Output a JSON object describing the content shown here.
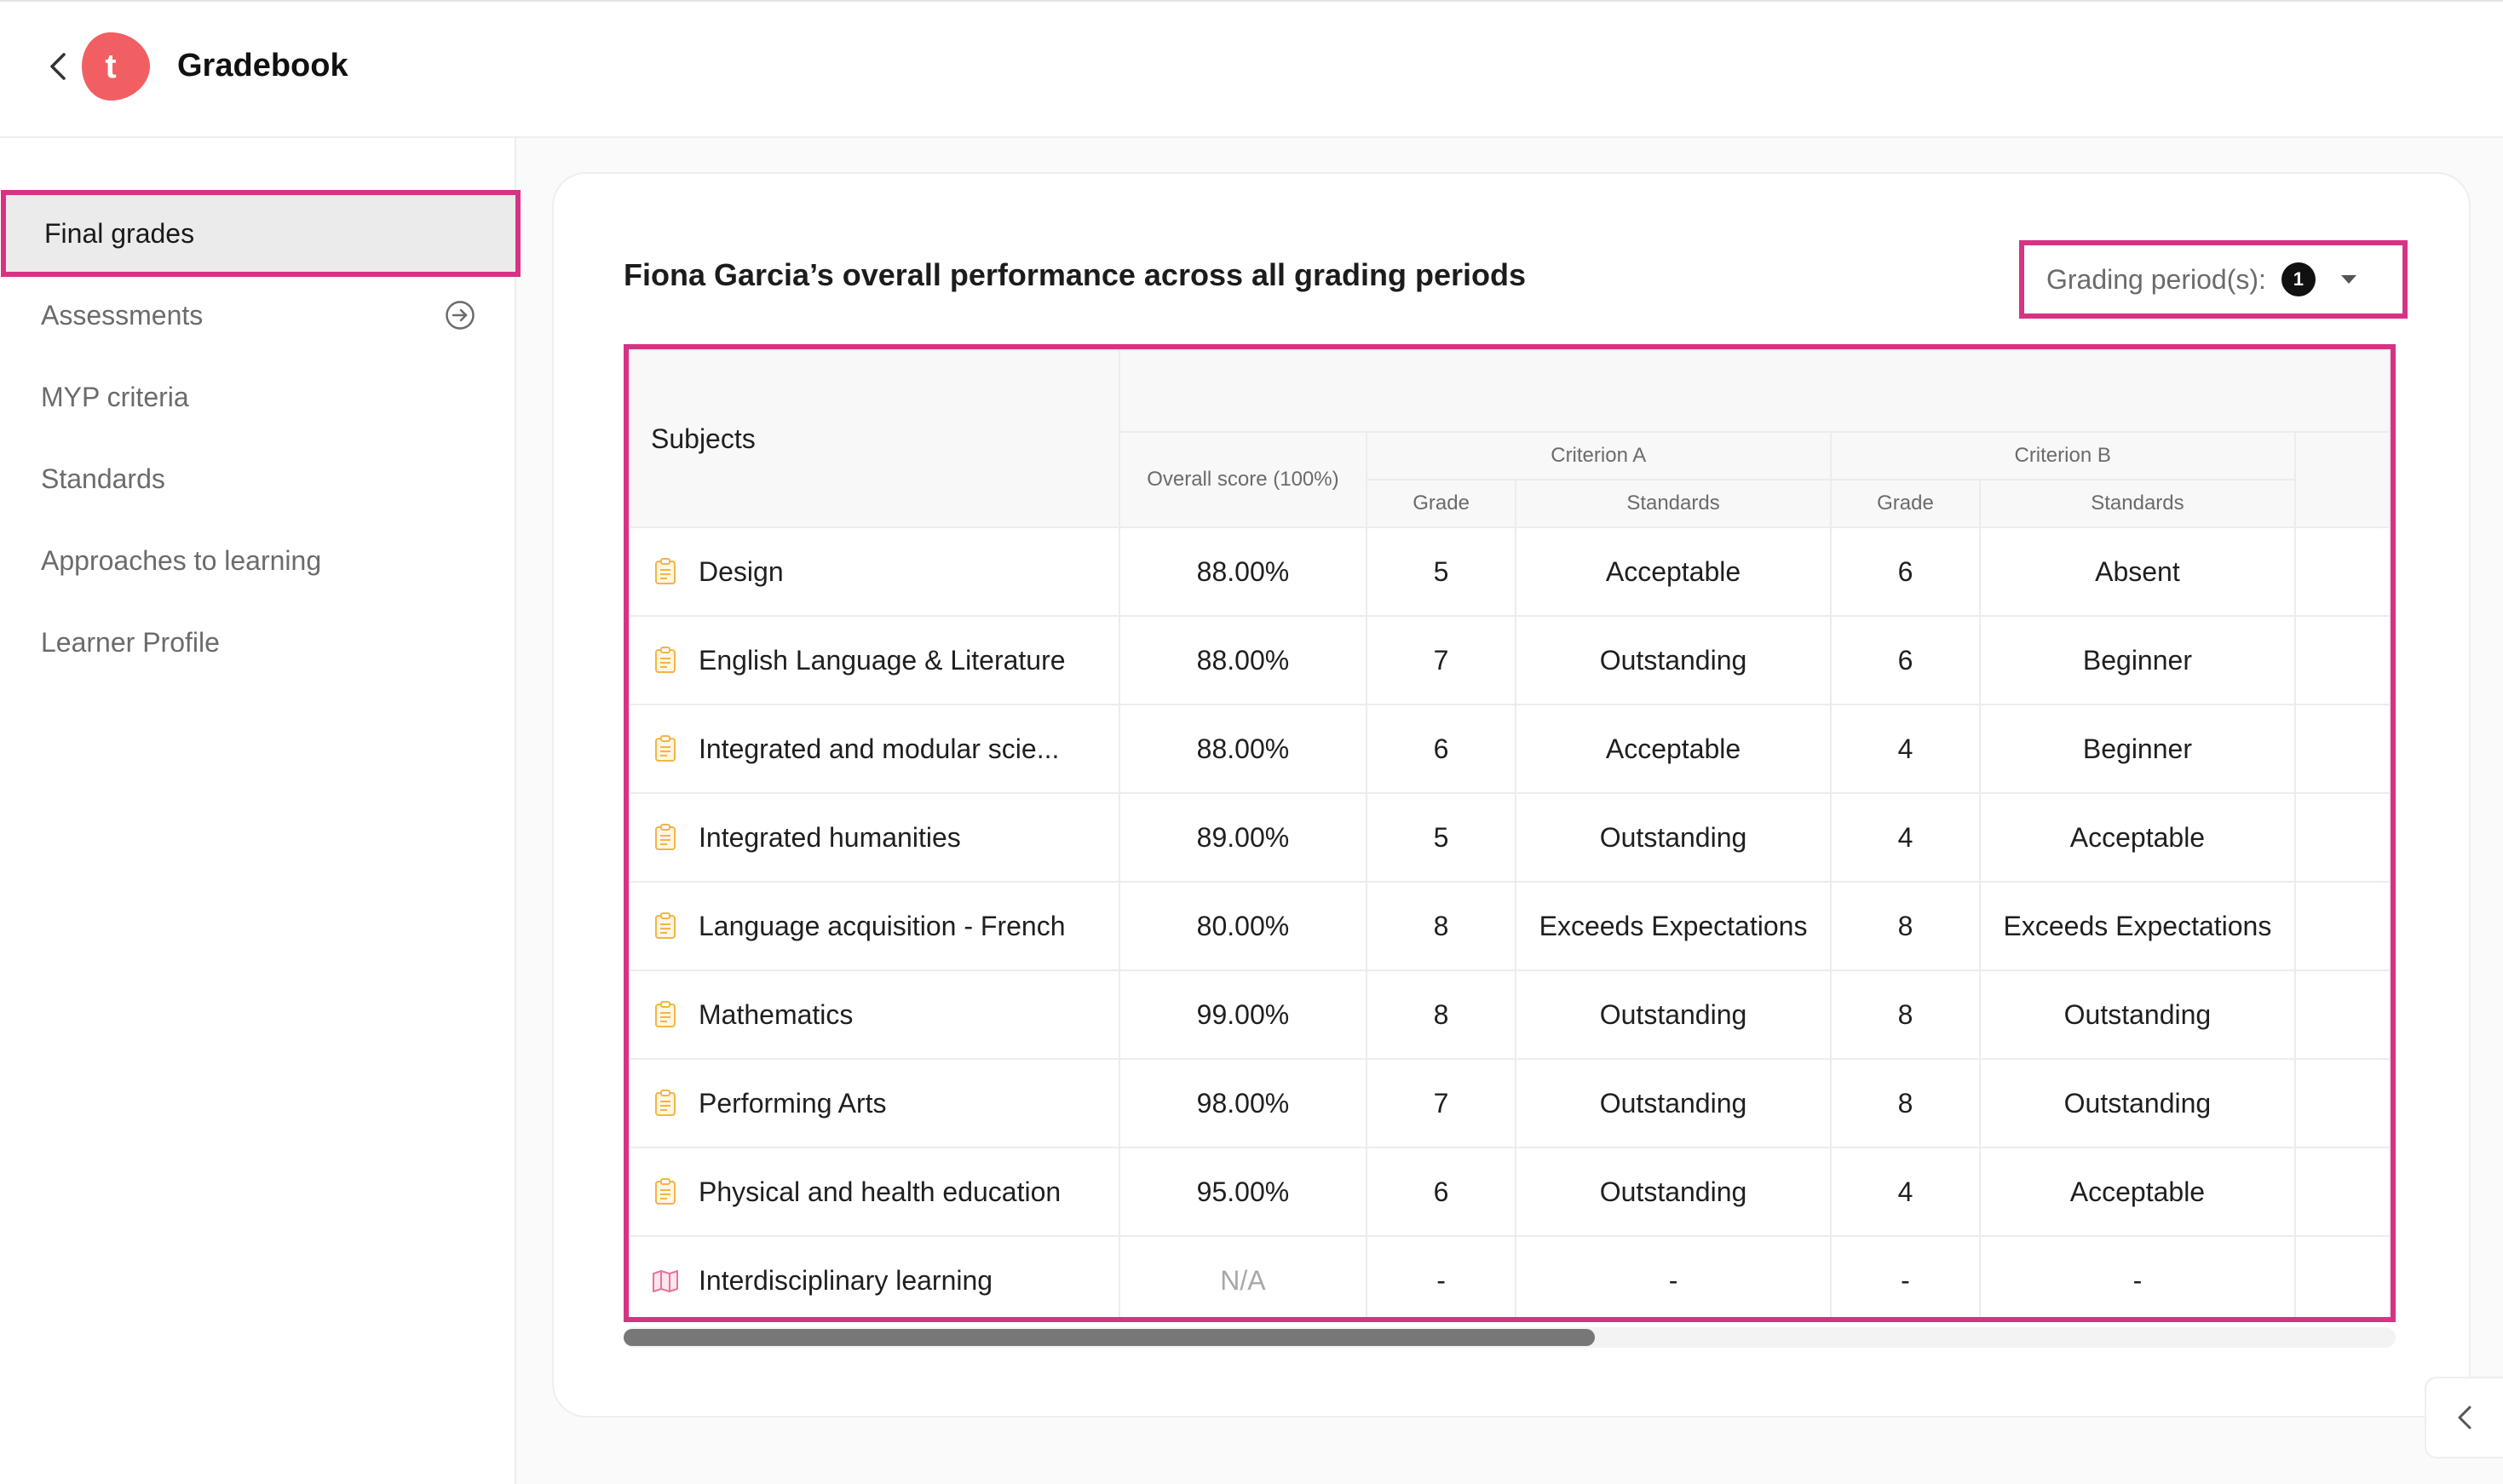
{
  "header": {
    "app_title": "Gradebook",
    "logo_letter": "t",
    "brand_color": "#f25f63"
  },
  "sidebar": {
    "items": [
      {
        "label": "Final grades",
        "active": true
      },
      {
        "label": "Assessments",
        "icon": "arrow-right-circle-icon"
      },
      {
        "label": "MYP criteria"
      },
      {
        "label": "Standards"
      },
      {
        "label": "Approaches to learning"
      },
      {
        "label": "Learner Profile"
      }
    ]
  },
  "main": {
    "title": "Fiona Garcia’s overall performance across all grading periods",
    "grading_period_label": "Grading period(s):",
    "grading_period_count": "1",
    "highlight_color": "#d63384"
  },
  "table": {
    "subjects_header": "Subjects",
    "overall_header": "Overall score (100%)",
    "criteria": [
      {
        "name": "Criterion A",
        "grade_header": "Grade",
        "standards_header": "Standards"
      },
      {
        "name": "Criterion B",
        "grade_header": "Grade",
        "standards_header": "Standards"
      }
    ],
    "rows": [
      {
        "subject": "Design",
        "icon": "clipboard-icon",
        "overall": "88.00%",
        "a_grade": "5",
        "a_std": "Acceptable",
        "b_grade": "6",
        "b_std": "Absent"
      },
      {
        "subject": "English Language & Literature",
        "icon": "clipboard-icon",
        "overall": "88.00%",
        "a_grade": "7",
        "a_std": "Outstanding",
        "b_grade": "6",
        "b_std": "Beginner"
      },
      {
        "subject": "Integrated and modular scie...",
        "icon": "clipboard-icon",
        "overall": "88.00%",
        "a_grade": "6",
        "a_std": "Acceptable",
        "b_grade": "4",
        "b_std": "Beginner"
      },
      {
        "subject": "Integrated humanities",
        "icon": "clipboard-icon",
        "overall": "89.00%",
        "a_grade": "5",
        "a_std": "Outstanding",
        "b_grade": "4",
        "b_std": "Acceptable"
      },
      {
        "subject": "Language acquisition - French",
        "icon": "clipboard-icon",
        "overall": "80.00%",
        "a_grade": "8",
        "a_std": "Exceeds Expectations",
        "b_grade": "8",
        "b_std": "Exceeds Expectations"
      },
      {
        "subject": "Mathematics",
        "icon": "clipboard-icon",
        "overall": "99.00%",
        "a_grade": "8",
        "a_std": "Outstanding",
        "b_grade": "8",
        "b_std": "Outstanding"
      },
      {
        "subject": "Performing Arts",
        "icon": "clipboard-icon",
        "overall": "98.00%",
        "a_grade": "7",
        "a_std": "Outstanding",
        "b_grade": "8",
        "b_std": "Outstanding"
      },
      {
        "subject": "Physical and health education",
        "icon": "clipboard-icon",
        "overall": "95.00%",
        "a_grade": "6",
        "a_std": "Outstanding",
        "b_grade": "4",
        "b_std": "Acceptable"
      },
      {
        "subject": "Interdisciplinary learning",
        "icon": "interdisciplinary-icon",
        "overall": "N/A",
        "a_grade": "-",
        "a_std": "-",
        "b_grade": "-",
        "b_std": "-"
      }
    ]
  }
}
